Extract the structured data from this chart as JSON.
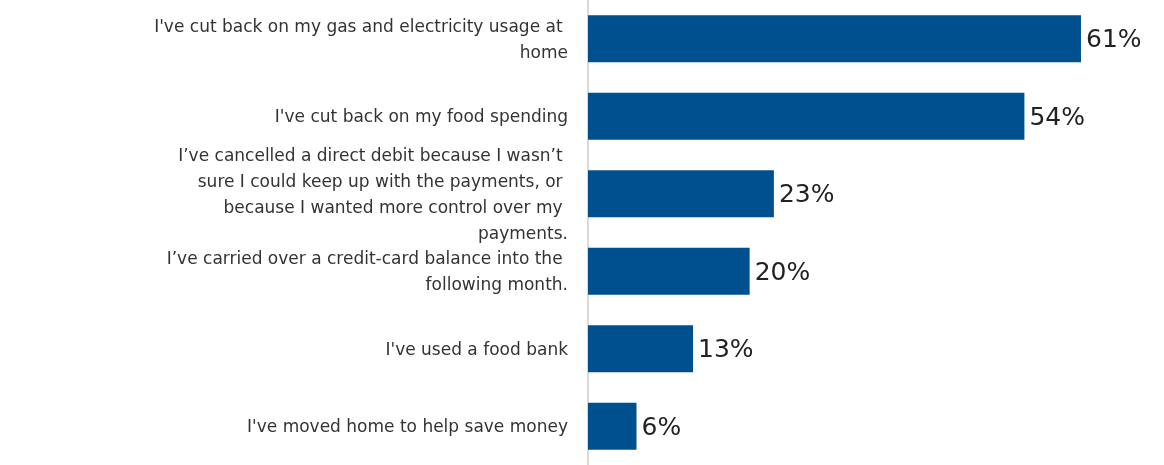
{
  "chart_data": {
    "type": "bar",
    "orientation": "horizontal",
    "categories": [
      "I've cut back on my gas and electricity usage at home",
      "I've cut back on my food spending",
      "I’ve cancelled a direct debit because I wasn’t sure I could keep up with the payments, or because I wanted more control over my payments.",
      "I’ve carried over a credit-card balance into the following month.",
      "I've used a food bank",
      "I've moved home to help save money"
    ],
    "values": [
      61,
      54,
      23,
      20,
      13,
      6
    ],
    "value_labels": [
      "61%",
      "54%",
      "23%",
      "20%",
      "13%",
      "6%"
    ],
    "color": "#00508f",
    "grid": false
  }
}
